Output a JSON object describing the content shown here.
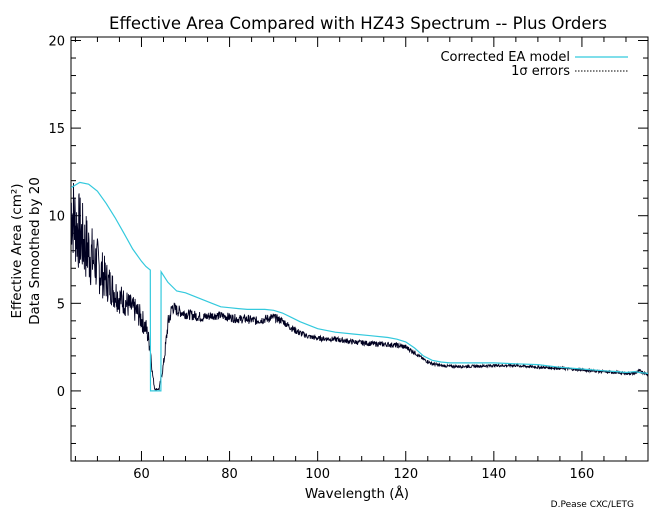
{
  "chart_data": {
    "type": "line",
    "title": "Effective Area Compared with HZ43 Spectrum -- Plus Orders",
    "xlabel": "Wavelength (Å)",
    "ylabel_line1": "Effective Area (cm²)",
    "ylabel_line2": "Data Smoothed by 20",
    "xlim": [
      44,
      175
    ],
    "ylim": [
      -4,
      20.2
    ],
    "x_ticks": [
      60,
      80,
      100,
      120,
      140,
      160
    ],
    "y_ticks": [
      0,
      5,
      10,
      15,
      20
    ],
    "grid": false,
    "legend_placement": "top-right",
    "legend": [
      {
        "label": "Corrected EA model",
        "color": "#33c9dd",
        "style": "solid"
      },
      {
        "label": "1σ errors",
        "color": "#000000",
        "style": "dotted"
      }
    ],
    "credit": "D.Pease CXC/LETG",
    "series": [
      {
        "name": "Corrected EA model",
        "color": "#33c9dd",
        "x": [
          44,
          46,
          48,
          50,
          52,
          54,
          56,
          58,
          60,
          61,
          62,
          62.05,
          63,
          64,
          64.4,
          64.45,
          66,
          68,
          70,
          72,
          74,
          76,
          78,
          80,
          82,
          84,
          86,
          88,
          90,
          92,
          94,
          96,
          98,
          100,
          104,
          108,
          112,
          116,
          118,
          120,
          122,
          124,
          126,
          128,
          130,
          135,
          140,
          145,
          150,
          155,
          160,
          165,
          168,
          170,
          172,
          173,
          175
        ],
        "y": [
          11.6,
          11.9,
          11.8,
          11.4,
          10.7,
          9.9,
          9.0,
          8.1,
          7.4,
          7.1,
          6.9,
          0,
          0,
          0,
          0,
          6.8,
          6.2,
          5.7,
          5.6,
          5.4,
          5.2,
          5.0,
          4.8,
          4.75,
          4.7,
          4.65,
          4.65,
          4.65,
          4.6,
          4.45,
          4.2,
          3.95,
          3.75,
          3.55,
          3.35,
          3.25,
          3.15,
          3.05,
          2.95,
          2.8,
          2.45,
          2.0,
          1.75,
          1.65,
          1.6,
          1.6,
          1.6,
          1.55,
          1.5,
          1.35,
          1.25,
          1.15,
          1.1,
          1.05,
          1.1,
          1.05,
          1.0
        ]
      },
      {
        "name": "data",
        "color": "#000020",
        "x": [
          44,
          45,
          46,
          47,
          48,
          49,
          50,
          51,
          52,
          53,
          54,
          55,
          56,
          57,
          58,
          59,
          60,
          61,
          62,
          62.5,
          63,
          64,
          65,
          65.5,
          66,
          67,
          68,
          70,
          72,
          74,
          76,
          78,
          80,
          82,
          84,
          86,
          88,
          90,
          92,
          94,
          96,
          98,
          100,
          104,
          108,
          112,
          116,
          118,
          120,
          122,
          124,
          126,
          128,
          130,
          135,
          140,
          145,
          150,
          155,
          160,
          165,
          168,
          170,
          172,
          173,
          175
        ],
        "y": [
          10.5,
          9.5,
          9.0,
          8.4,
          8.0,
          7.5,
          7.2,
          6.7,
          6.3,
          6.0,
          5.6,
          5.3,
          5.1,
          4.9,
          4.7,
          4.5,
          4.1,
          3.6,
          2.5,
          1.0,
          0.1,
          0.1,
          1.5,
          2.6,
          3.8,
          4.8,
          4.6,
          4.4,
          4.3,
          4.2,
          4.3,
          4.3,
          4.2,
          4.1,
          4.1,
          4.0,
          4.1,
          4.2,
          4.0,
          3.6,
          3.3,
          3.1,
          3.0,
          2.95,
          2.8,
          2.7,
          2.65,
          2.6,
          2.5,
          2.2,
          1.8,
          1.55,
          1.45,
          1.4,
          1.4,
          1.45,
          1.45,
          1.35,
          1.3,
          1.2,
          1.1,
          1.05,
          1.0,
          1.0,
          1.15,
          0.95
        ],
        "noise": [
          2.6,
          2.5,
          2.3,
          2.1,
          2.0,
          1.8,
          1.6,
          1.4,
          1.2,
          1.1,
          1.0,
          0.9,
          0.8,
          0.8,
          0.7,
          0.7,
          0.7,
          0.6,
          0.5,
          0.2,
          0.05,
          0.05,
          0.3,
          0.4,
          0.5,
          0.4,
          0.35,
          0.3,
          0.3,
          0.3,
          0.25,
          0.25,
          0.25,
          0.25,
          0.25,
          0.25,
          0.25,
          0.25,
          0.2,
          0.2,
          0.2,
          0.15,
          0.15,
          0.15,
          0.15,
          0.15,
          0.15,
          0.15,
          0.15,
          0.12,
          0.1,
          0.1,
          0.08,
          0.08,
          0.08,
          0.08,
          0.08,
          0.08,
          0.08,
          0.08,
          0.08,
          0.08,
          0.08,
          0.08,
          0.1,
          0.08
        ]
      }
    ]
  }
}
